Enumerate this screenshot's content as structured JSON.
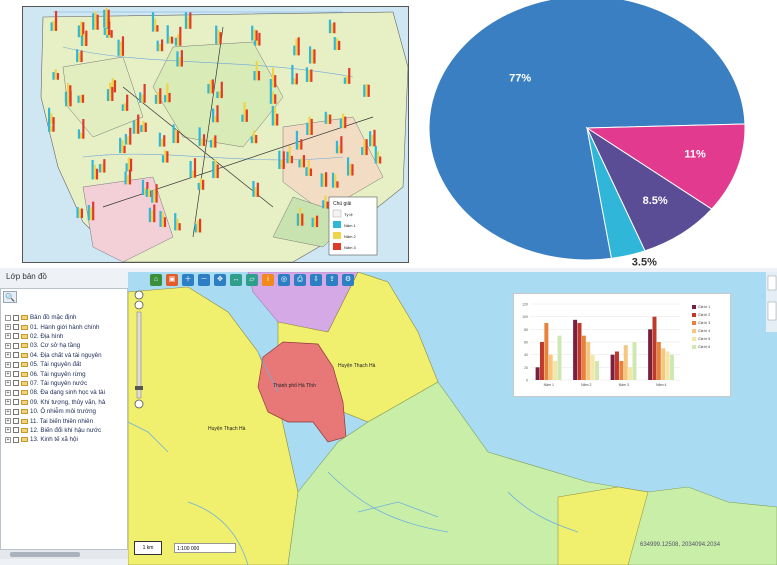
{
  "pie": {
    "slices": [
      {
        "label": "77%",
        "value": 77,
        "color": "#3a7fc1"
      },
      {
        "label": "11%",
        "value": 11,
        "color": "#e23a8f"
      },
      {
        "label": "8.5%",
        "value": 8.5,
        "color": "#5a4d96"
      },
      {
        "label": "3.5%",
        "value": 3.5,
        "color": "#2fb6d9"
      }
    ]
  },
  "top_map": {
    "legend_title": "Chú giải",
    "legend_items": [
      {
        "label": "Tỷ lệ",
        "color": "#f3f3f3"
      },
      {
        "label": "Năm 1",
        "color": "#2fb6d9"
      },
      {
        "label": "Năm 2",
        "color": "#f0d44a"
      },
      {
        "label": "Năm 3",
        "color": "#e03a2a"
      }
    ]
  },
  "gis": {
    "panel_title": "Lớp bản đồ",
    "search_icon_label": "🔍",
    "layers": [
      {
        "label": "Bản đồ mặc định",
        "exp": ""
      },
      {
        "label": "01. Hành giới hành chính",
        "exp": "+"
      },
      {
        "label": "02. Địa hình",
        "exp": "+"
      },
      {
        "label": "03. Cơ sở hạ tầng",
        "exp": "+"
      },
      {
        "label": "04. Địa chất và tài nguyên",
        "exp": "+"
      },
      {
        "label": "05. Tài nguyên đất",
        "exp": "+"
      },
      {
        "label": "06. Tài nguyên rừng",
        "exp": "+"
      },
      {
        "label": "07. Tài nguyên nước",
        "exp": "+"
      },
      {
        "label": "08. Đa dạng sinh học và tài",
        "exp": "+"
      },
      {
        "label": "09. Khí tượng, thủy văn, hả",
        "exp": "+"
      },
      {
        "label": "10. Ô nhiễm môi trường",
        "exp": "+"
      },
      {
        "label": "11. Tai biến thiên nhiên",
        "exp": "+"
      },
      {
        "label": "12. Biến đổi khí hậu nước",
        "exp": "+"
      },
      {
        "label": "13. Kinh tế xã hội",
        "exp": "+"
      }
    ],
    "map_labels": {
      "district_a": "Huyện Thạch Hà",
      "district_b": "Huyện Thạch Hà",
      "city": "Thành phố Hà Tĩnh"
    },
    "scale_text": "1 km",
    "scale_select_value": "1:100 000",
    "coords_text": "634999.12508, 2034094.2034",
    "chart": {
      "categories": [
        "Năm 1",
        "Năm 2",
        "Năm 3",
        "Năm 4"
      ],
      "ylim": [
        0,
        120
      ],
      "yticks": [
        "120",
        "100",
        "80",
        "60",
        "40",
        "20",
        "0"
      ],
      "series": [
        {
          "name": "Giá trị 1",
          "color": "#7a1f3c",
          "values": [
            20,
            95,
            40,
            80
          ]
        },
        {
          "name": "Giá trị 2",
          "color": "#c0392b",
          "values": [
            60,
            90,
            45,
            100
          ]
        },
        {
          "name": "Giá trị 3",
          "color": "#e8813a",
          "values": [
            90,
            70,
            30,
            60
          ]
        },
        {
          "name": "Giá trị 4",
          "color": "#f5c77e",
          "values": [
            40,
            60,
            55,
            50
          ]
        },
        {
          "name": "Giá trị 5",
          "color": "#f4e6a8",
          "values": [
            30,
            40,
            20,
            45
          ]
        },
        {
          "name": "Giá trị 6",
          "color": "#cfe8b0",
          "values": [
            70,
            30,
            60,
            40
          ]
        }
      ]
    }
  }
}
